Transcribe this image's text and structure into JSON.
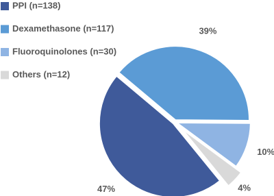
{
  "chart_data": {
    "type": "pie",
    "categories": [
      "PPI (n=138)",
      "Dexamethasone (n=117)",
      "Fluoroquinolones (n=30)",
      "Others (n=12)"
    ],
    "values": [
      47,
      39,
      10,
      4
    ],
    "value_labels": [
      "47%",
      "39%",
      "10%",
      "4%"
    ],
    "colors": [
      "#3f5a9a",
      "#5b9bd5",
      "#8fb4e3",
      "#d9d9d9"
    ]
  }
}
